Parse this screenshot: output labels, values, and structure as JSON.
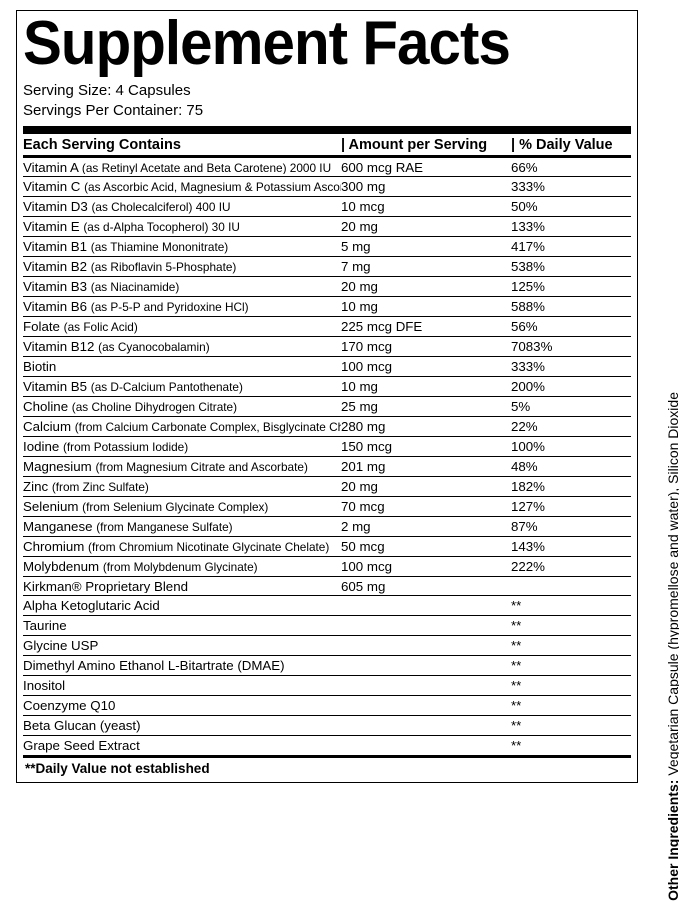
{
  "title": "Supplement Facts",
  "serving_size_label": "Serving Size:",
  "serving_size_value": "4 Capsules",
  "servings_per_label": "Servings Per Container:",
  "servings_per_value": "75",
  "header": {
    "name": "Each Serving Contains",
    "amount": "| Amount per Serving",
    "dv": "| % Daily Value"
  },
  "rows": [
    {
      "name": "Vitamin A",
      "form": "(as Retinyl Acetate and Beta Carotene) 2000 IU",
      "amount": "600 mcg RAE",
      "dv": "66%"
    },
    {
      "name": "Vitamin C",
      "form": "(as Ascorbic Acid, Magnesium & Potassium  Ascorbates)",
      "amount": "300 mg",
      "dv": "333%"
    },
    {
      "name": "Vitamin D3",
      "form": "(as Cholecalciferol) 400 IU",
      "amount": "10 mcg",
      "dv": "50%"
    },
    {
      "name": "Vitamin E",
      "form": "(as d-Alpha Tocopherol) 30 IU",
      "amount": "20 mg",
      "dv": "133%"
    },
    {
      "name": "Vitamin B1",
      "form": "(as Thiamine Mononitrate)",
      "amount": "5 mg",
      "dv": "417%"
    },
    {
      "name": "Vitamin B2",
      "form": "(as Riboflavin 5-Phosphate)",
      "amount": "7 mg",
      "dv": "538%"
    },
    {
      "name": "Vitamin B3",
      "form": "(as Niacinamide)",
      "amount": "20 mg",
      "dv": "125%"
    },
    {
      "name": "Vitamin B6",
      "form": "(as P-5-P and Pyridoxine HCl)",
      "amount": "10 mg",
      "dv": "588%"
    },
    {
      "name": "Folate",
      "form": "(as Folic Acid)",
      "amount": "225 mcg DFE",
      "dv": "56%"
    },
    {
      "name": "Vitamin B12",
      "form": "(as Cyanocobalamin)",
      "amount": "170 mcg",
      "dv": "7083%"
    },
    {
      "name": "Biotin",
      "form": "",
      "amount": "100 mcg",
      "dv": "333%"
    },
    {
      "name": "Vitamin B5",
      "form": "(as D-Calcium Pantothenate)",
      "amount": "10 mg",
      "dv": "200%"
    },
    {
      "name": "Choline",
      "form": "(as Choline Dihydrogen Citrate)",
      "amount": "25 mg",
      "dv": "5%"
    },
    {
      "name": "Calcium",
      "form": "(from Calcium Carbonate Complex, Bisglycinate Chelate)",
      "amount": "280 mg",
      "dv": "22%"
    },
    {
      "name": "Iodine",
      "form": "(from Potassium Iodide)",
      "amount": "150 mcg",
      "dv": "100%"
    },
    {
      "name": "Magnesium",
      "form": "(from Magnesium Citrate and Ascorbate)",
      "amount": "201 mg",
      "dv": "48%"
    },
    {
      "name": "Zinc",
      "form": "(from Zinc Sulfate)",
      "amount": "20 mg",
      "dv": "182%"
    },
    {
      "name": "Selenium",
      "form": "(from Selenium Glycinate Complex)",
      "amount": "70 mcg",
      "dv": "127%"
    },
    {
      "name": "Manganese",
      "form": "(from Manganese Sulfate)",
      "amount": "2 mg",
      "dv": "87%"
    },
    {
      "name": "Chromium",
      "form": "(from Chromium Nicotinate Glycinate Chelate)",
      "amount": "50 mcg",
      "dv": "143%"
    },
    {
      "name": "Molybdenum",
      "form": "(from Molybdenum Glycinate)",
      "amount": "100 mcg",
      "dv": "222%"
    },
    {
      "name": "Kirkman® Proprietary Blend",
      "form": "",
      "amount": "605 mg",
      "dv": ""
    },
    {
      "name": "Alpha Ketoglutaric Acid",
      "form": "",
      "amount": "",
      "dv": "**"
    },
    {
      "name": "Taurine",
      "form": "",
      "amount": "",
      "dv": "**"
    },
    {
      "name": "Glycine USP",
      "form": "",
      "amount": "",
      "dv": "**"
    },
    {
      "name": "Dimethyl Amino Ethanol L-Bitartrate (DMAE)",
      "form": "",
      "amount": "",
      "dv": "**"
    },
    {
      "name": "Inositol",
      "form": "",
      "amount": "",
      "dv": "**"
    },
    {
      "name": "Coenzyme Q10",
      "form": "",
      "amount": "",
      "dv": "**"
    },
    {
      "name": "Beta Glucan (yeast)",
      "form": "",
      "amount": "",
      "dv": "**"
    },
    {
      "name": "Grape Seed Extract",
      "form": "",
      "amount": "",
      "dv": "**"
    }
  ],
  "footnote": "**Daily Value not established",
  "other_ingredients_label": "Other Ingredients:",
  "other_ingredients_value": "Vegetarian Capsule (hypromellose and water), Silicon Dioxide"
}
